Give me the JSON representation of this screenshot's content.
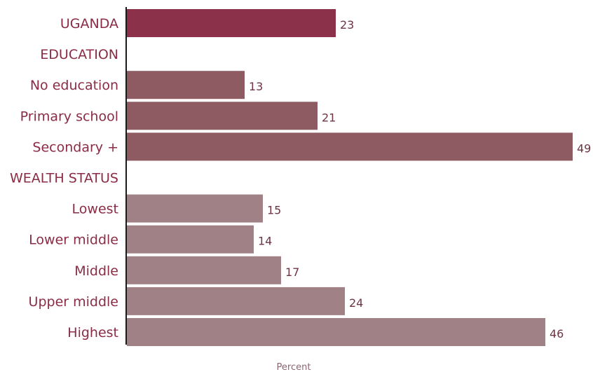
{
  "chart_data": {
    "type": "bar",
    "orientation": "horizontal",
    "categories": [
      "UGANDA",
      "EDUCATION",
      "No education",
      "Primary school",
      "Secondary +",
      "WEALTH STATUS",
      "Lowest",
      "Lower middle",
      "Middle",
      "Upper middle",
      "Highest"
    ],
    "values": [
      23,
      null,
      13,
      21,
      49,
      null,
      15,
      14,
      17,
      24,
      46
    ],
    "group_of": [
      "total",
      "header",
      "education",
      "education",
      "education",
      "header",
      "wealth",
      "wealth",
      "wealth",
      "wealth",
      "wealth"
    ],
    "xlabel": "Percent",
    "xlim": [
      0,
      49
    ],
    "grid": false,
    "legend": "none"
  },
  "colors": {
    "total": "#8b3149",
    "education": "#8e5b63",
    "wealth": "#a08186",
    "category_text": "#8b2b45",
    "value_text": "#6d3543",
    "axis": "#1a1a1a"
  }
}
